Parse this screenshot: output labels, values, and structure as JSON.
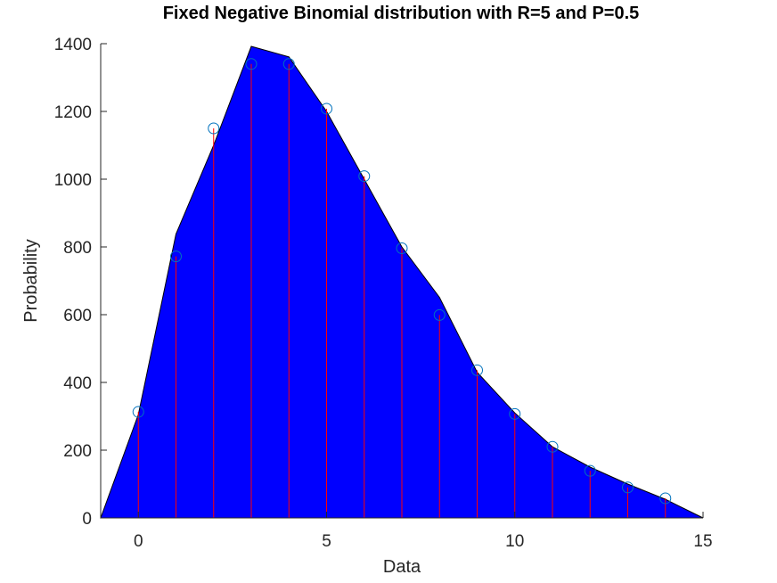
{
  "chart_data": {
    "type": "area",
    "title": "Fixed Negative Binomial distribution with R=5 and P=0.5",
    "xlabel": "Data",
    "ylabel": "Probability",
    "xlim": [
      -1,
      15
    ],
    "ylim": [
      0,
      1400
    ],
    "xticks": [
      0,
      5,
      10,
      15
    ],
    "yticks": [
      0,
      200,
      400,
      600,
      800,
      1000,
      1200,
      1400
    ],
    "grid": false,
    "legend": null,
    "series": [
      {
        "name": "area",
        "kind": "filled-area",
        "color": "#0000ff",
        "x": [
          -1,
          0,
          1,
          2,
          3,
          4,
          5,
          6,
          7,
          8,
          9,
          10,
          11,
          12,
          13,
          14,
          15
        ],
        "values": [
          0,
          305,
          838,
          1100,
          1392,
          1361,
          1200,
          1000,
          800,
          651,
          430,
          310,
          210,
          150,
          100,
          55,
          0
        ]
      },
      {
        "name": "stem",
        "kind": "stem",
        "line_color": "#ff0000",
        "marker_color": "#0072bd",
        "marker": "circle",
        "x": [
          0,
          1,
          2,
          3,
          4,
          5,
          6,
          7,
          8,
          9,
          10,
          11,
          12,
          13,
          14
        ],
        "values": [
          313,
          772,
          1150,
          1340,
          1340,
          1208,
          1009,
          796,
          599,
          436,
          307,
          210,
          139,
          90,
          58
        ]
      }
    ]
  }
}
